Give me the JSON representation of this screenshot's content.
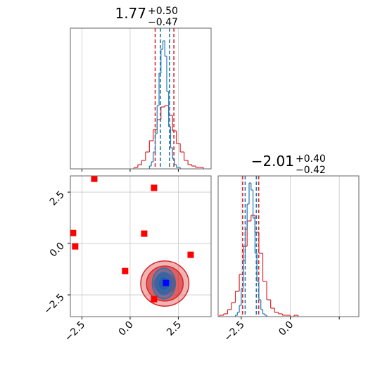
{
  "chart_data": [
    {
      "type": "histogram",
      "title": {
        "value": "1.77",
        "plus": "+0.50",
        "minus": "−0.47"
      },
      "xlim": [
        -3.1,
        4.2
      ],
      "xticks": [
        -2.5,
        0,
        2.5
      ],
      "ylim": [
        0,
        1
      ],
      "grid": true,
      "series": [
        {
          "color": "#d62728",
          "bins": [
            0.2,
            0.4,
            0.6,
            0.8,
            1.0,
            1.2,
            1.4,
            1.6,
            1.8,
            2.0,
            2.2,
            2.4,
            2.6,
            2.8,
            3.0,
            3.2,
            3.4,
            3.6,
            3.8
          ],
          "values": [
            0.01,
            0.03,
            0.06,
            0.12,
            0.2,
            0.28,
            0.35,
            0.44,
            0.45,
            0.38,
            0.27,
            0.18,
            0.12,
            0.06,
            0.03,
            0.02,
            0.01,
            0.01
          ],
          "quantiles": [
            1.3,
            2.27
          ]
        },
        {
          "color": "#1f77b4",
          "bins": [
            1.0,
            1.1,
            1.2,
            1.3,
            1.4,
            1.5,
            1.6,
            1.7,
            1.8,
            1.9,
            2.0,
            2.1,
            2.2,
            2.3,
            2.4,
            2.5,
            2.6
          ],
          "values": [
            0.02,
            0.05,
            0.12,
            0.25,
            0.45,
            0.68,
            0.85,
            0.91,
            0.8,
            0.55,
            0.3,
            0.15,
            0.07,
            0.03,
            0.01,
            0.01
          ],
          "quantiles": [
            1.57,
            2.04
          ]
        }
      ]
    },
    {
      "type": "scatter",
      "xlim": [
        -3.1,
        4.2
      ],
      "ylim": [
        -3.56,
        3.29
      ],
      "grid": true,
      "xticks": [
        {
          "value": -2.5,
          "label": "−2.5"
        },
        {
          "value": 0,
          "label": "0.0"
        },
        2.5
      ],
      "yticks": [
        {
          "value": -2.5,
          "label": "−2.5"
        },
        {
          "value": 0,
          "label": "0.0"
        },
        2.5
      ],
      "contours": [
        {
          "color": "#d62728",
          "x": 1.8,
          "y": -1.95,
          "rx": [
            1.25,
            0.95,
            0.55
          ],
          "ry": [
            1.1,
            0.85,
            0.5
          ]
        },
        {
          "color": "#1f77b4",
          "x": 1.75,
          "y": -1.95,
          "rx": [
            0.6,
            0.45,
            0.3
          ],
          "ry": [
            0.75,
            0.55,
            0.35
          ]
        }
      ],
      "series": [
        {
          "color": "#ff0000",
          "x": [
            -1.86,
            1.24,
            -2.96,
            -2.85,
            0.73,
            3.14,
            -0.26,
            1.24
          ],
          "y": [
            3.15,
            2.71,
            0.51,
            -0.14,
            0.48,
            -0.55,
            -1.34,
            -2.71
          ]
        },
        {
          "color": "#0000ff",
          "x": [
            1.86
          ],
          "y": [
            -1.92
          ]
        }
      ]
    },
    {
      "type": "histogram",
      "title": {
        "value": "−2.01",
        "plus": "+0.40",
        "minus": "−0.42"
      },
      "xlim": [
        -3.68,
        3.5
      ],
      "ylim": [
        0,
        1
      ],
      "grid": true,
      "xticks": [
        {
          "value": -2.5,
          "label": "−2.5"
        },
        {
          "value": 0,
          "label": "0.0"
        },
        2.5
      ],
      "series": [
        {
          "color": "#d62728",
          "bins": [
            -3.6,
            -3.4,
            -3.2,
            -3.0,
            -2.8,
            -2.6,
            -2.4,
            -2.2,
            -2.0,
            -1.8,
            -1.6,
            -1.4,
            -1.2,
            -1.0,
            -0.8,
            -0.6,
            -0.4,
            -0.2,
            0.0,
            0.2,
            0.4
          ],
          "values": [
            0.01,
            0.02,
            0.05,
            0.1,
            0.18,
            0.3,
            0.5,
            0.68,
            0.72,
            0.6,
            0.45,
            0.25,
            0.12,
            0.06,
            0.03,
            0.02,
            0.01,
            0.01,
            0.0,
            0.01
          ],
          "quantiles": [
            -2.43,
            -1.61
          ]
        },
        {
          "color": "#1f77b4",
          "bins": [
            -2.8,
            -2.7,
            -2.6,
            -2.5,
            -2.4,
            -2.3,
            -2.2,
            -2.1,
            -2.0,
            -1.9,
            -1.8,
            -1.7,
            -1.6,
            -1.5,
            -1.4,
            -1.3,
            -1.2
          ],
          "values": [
            0.01,
            0.03,
            0.08,
            0.2,
            0.4,
            0.62,
            0.8,
            0.95,
            0.9,
            0.7,
            0.45,
            0.25,
            0.12,
            0.05,
            0.02,
            0.01
          ],
          "quantiles": [
            -2.3,
            -1.73
          ]
        }
      ]
    }
  ]
}
